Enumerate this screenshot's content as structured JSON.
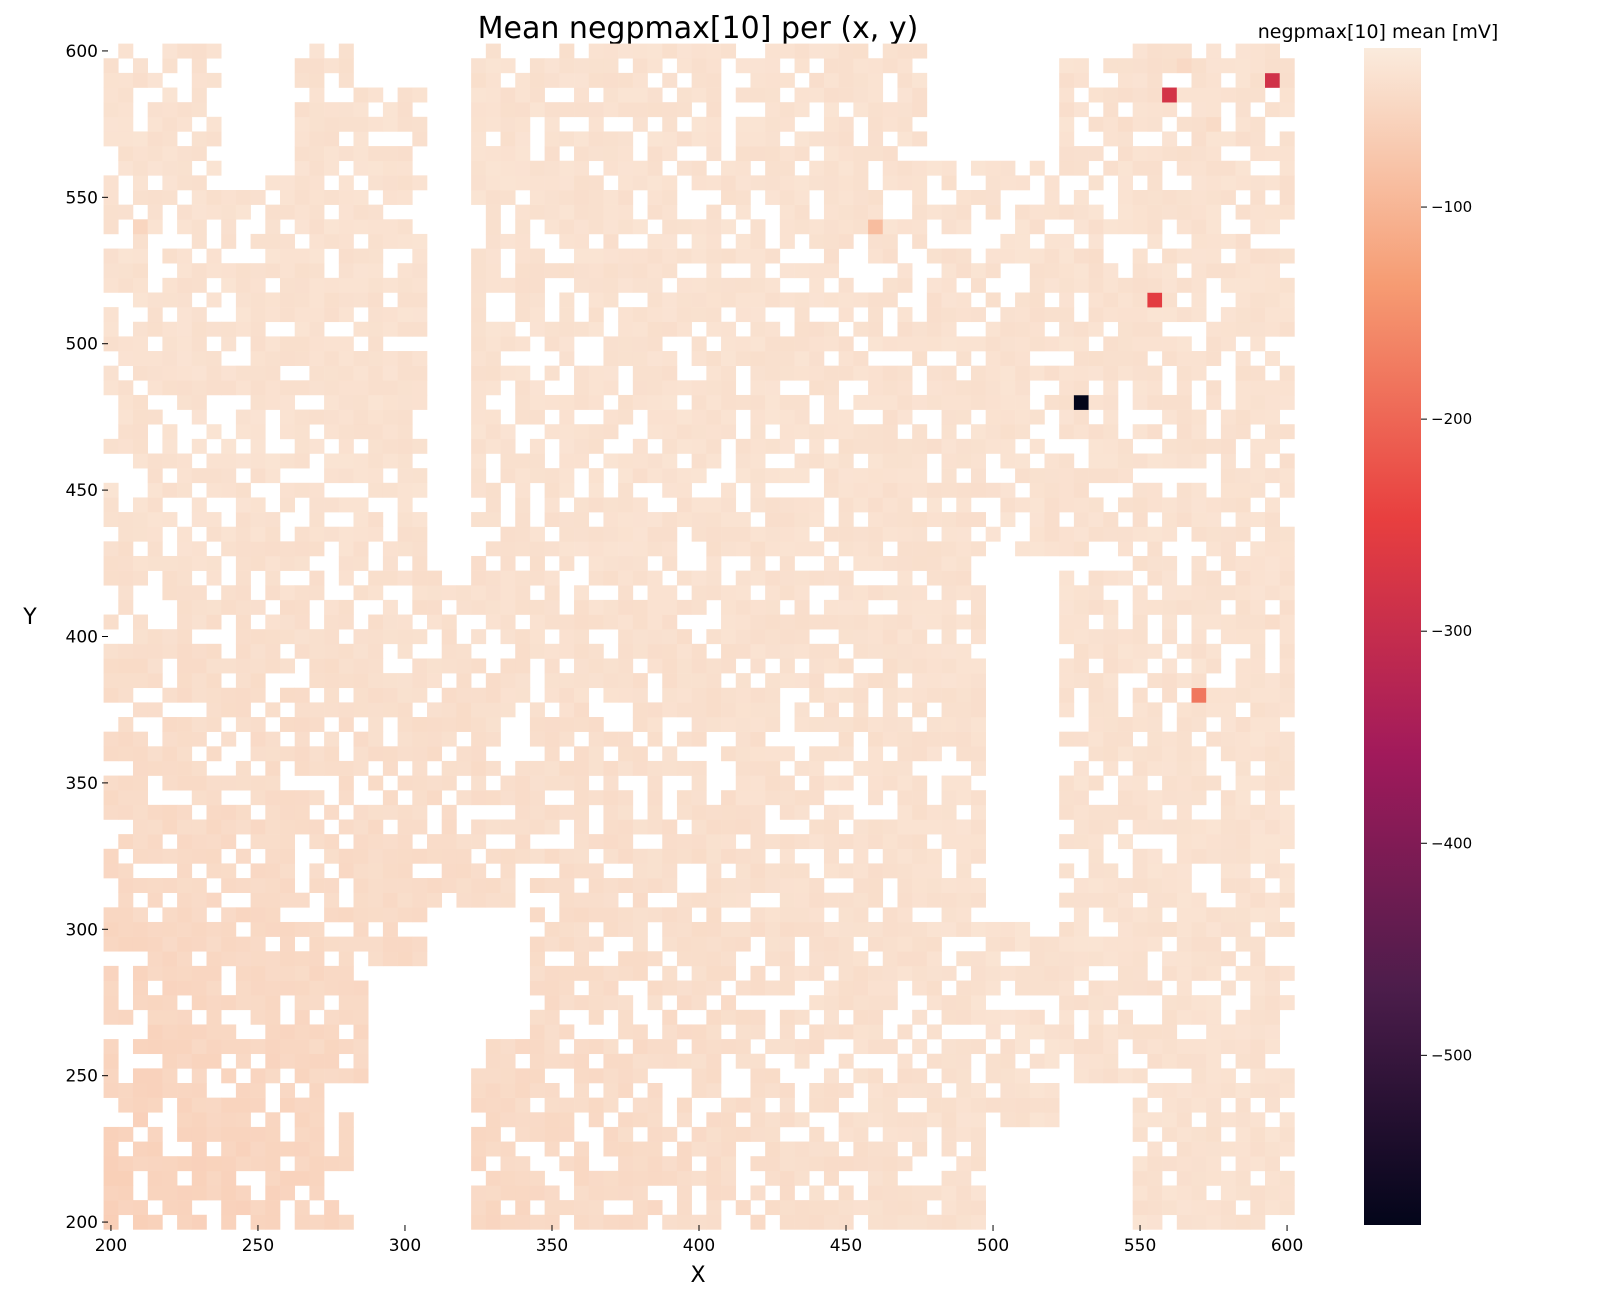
{
  "chart_data": {
    "type": "heatmap",
    "title": "Mean negpmax[10] per (x, y)",
    "xlabel": "X",
    "ylabel": "Y",
    "colorbar_label": "negpmax[10] mean [mV]",
    "xlim": [
      199,
      601
    ],
    "ylim": [
      199,
      601
    ],
    "x_ticks": [
      200,
      250,
      300,
      350,
      400,
      450,
      500,
      550,
      600
    ],
    "y_ticks": [
      200,
      250,
      300,
      350,
      400,
      450,
      500,
      550,
      600
    ],
    "colorbar_ticks": [
      -100,
      -200,
      -300,
      -400,
      -500
    ],
    "value_range": [
      -580,
      -25
    ],
    "cell_size": 5,
    "colorscale": [
      "#03051a",
      "#4c1d4b",
      "#a11a5b",
      "#e83f3f",
      "#f69c73",
      "#faebdd"
    ],
    "typical_value": -35,
    "outliers": [
      {
        "x": 530,
        "y": 480,
        "value": -580
      },
      {
        "x": 595,
        "y": 590,
        "value": -285
      },
      {
        "x": 560,
        "y": 585,
        "value": -280
      },
      {
        "x": 555,
        "y": 515,
        "value": -255
      },
      {
        "x": 570,
        "y": 380,
        "value": -180
      },
      {
        "x": 460,
        "y": 540,
        "value": -90
      },
      {
        "x": 210,
        "y": 540,
        "value": -55
      },
      {
        "x": 565,
        "y": 595,
        "value": -50
      },
      {
        "x": 595,
        "y": 405,
        "value": -45
      },
      {
        "x": 575,
        "y": 575,
        "value": -48
      },
      {
        "x": 545,
        "y": 575,
        "value": -45
      },
      {
        "x": 535,
        "y": 530,
        "value": -45
      }
    ]
  }
}
